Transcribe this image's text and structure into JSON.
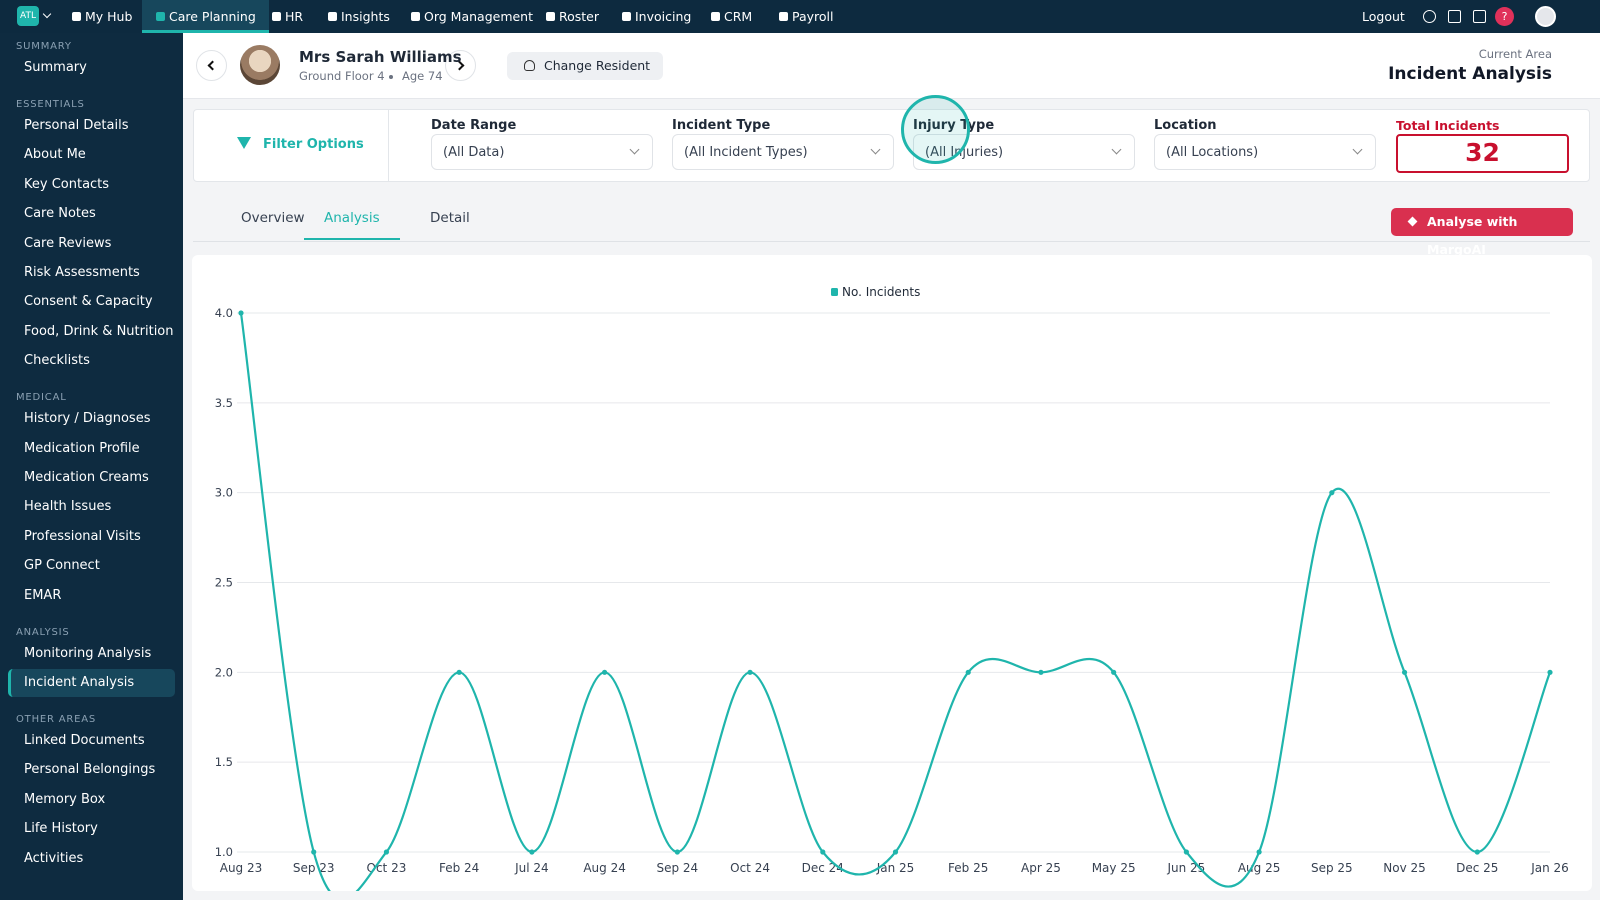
{
  "nav": {
    "logo": "ATL",
    "items": [
      "My Hub",
      "Care Planning",
      "HR",
      "Insights",
      "Org Management",
      "Roster",
      "Invoicing",
      "CRM",
      "Payroll"
    ],
    "active": 1,
    "logout": "Logout",
    "help": "?"
  },
  "sidebar": {
    "sections": [
      {
        "title": "SUMMARY",
        "items": [
          "Summary"
        ]
      },
      {
        "title": "ESSENTIALS",
        "items": [
          "Personal Details",
          "About Me",
          "Key Contacts",
          "Care Notes",
          "Care Reviews",
          "Risk Assessments",
          "Consent & Capacity",
          "Food, Drink & Nutrition",
          "Checklists"
        ]
      },
      {
        "title": "MEDICAL",
        "items": [
          "History / Diagnoses",
          "Medication Profile",
          "Medication Creams",
          "Health Issues",
          "Professional Visits",
          "GP Connect",
          "EMAR"
        ]
      },
      {
        "title": "ANALYSIS",
        "items": [
          "Monitoring Analysis",
          "Incident Analysis"
        ]
      },
      {
        "title": "OTHER AREAS",
        "items": [
          "Linked Documents",
          "Personal Belongings",
          "Memory Box",
          "Life History",
          "Activities"
        ]
      }
    ],
    "active": [
      3,
      1
    ]
  },
  "resident": {
    "name": "Mrs Sarah Williams",
    "location": "Ground Floor 4",
    "age": "Age 74",
    "change": "Change Resident"
  },
  "area": {
    "label": "Current Area",
    "title": "Incident Analysis"
  },
  "filters": {
    "title": "Filter Options",
    "fields": [
      {
        "label": "Date Range",
        "value": "(All Data)"
      },
      {
        "label": "Incident Type",
        "value": "(All Incident Types)"
      },
      {
        "label": "Injury Type",
        "value": "(All Injuries)"
      },
      {
        "label": "Location",
        "value": "(All Locations)"
      }
    ],
    "total_label": "Total Incidents",
    "total": 32
  },
  "tabs": {
    "items": [
      "Overview",
      "Analysis",
      "Detail"
    ],
    "active": 1
  },
  "ai_button": "Analyse with MargoAI",
  "chart_data": {
    "type": "line",
    "categories": [
      "Aug 23",
      "Sep 23",
      "Oct 23",
      "Feb 24",
      "Jul 24",
      "Aug 24",
      "Sep 24",
      "Oct 24",
      "Dec 24",
      "Jan 25",
      "Feb 25",
      "Apr 25",
      "May 25",
      "Jun 25",
      "Aug 25",
      "Sep 25",
      "Nov 25",
      "Dec 25",
      "Jan 26"
    ],
    "series": [
      {
        "name": "No. Incidents",
        "color": "#1fb5ac",
        "values": [
          4,
          1,
          1,
          2,
          1,
          2,
          1,
          2,
          1,
          1,
          2,
          2,
          2,
          1,
          1,
          3,
          2,
          1,
          2
        ]
      }
    ],
    "ylim": [
      1,
      4
    ],
    "yticks": [
      {
        "value": 1,
        "label": "1.0"
      },
      1.5,
      {
        "value": 2,
        "label": "2.0"
      },
      2.5,
      {
        "value": 3,
        "label": "3.0"
      },
      3.5,
      {
        "value": 4,
        "label": "4.0"
      }
    ],
    "grid": true,
    "legend": "top"
  }
}
